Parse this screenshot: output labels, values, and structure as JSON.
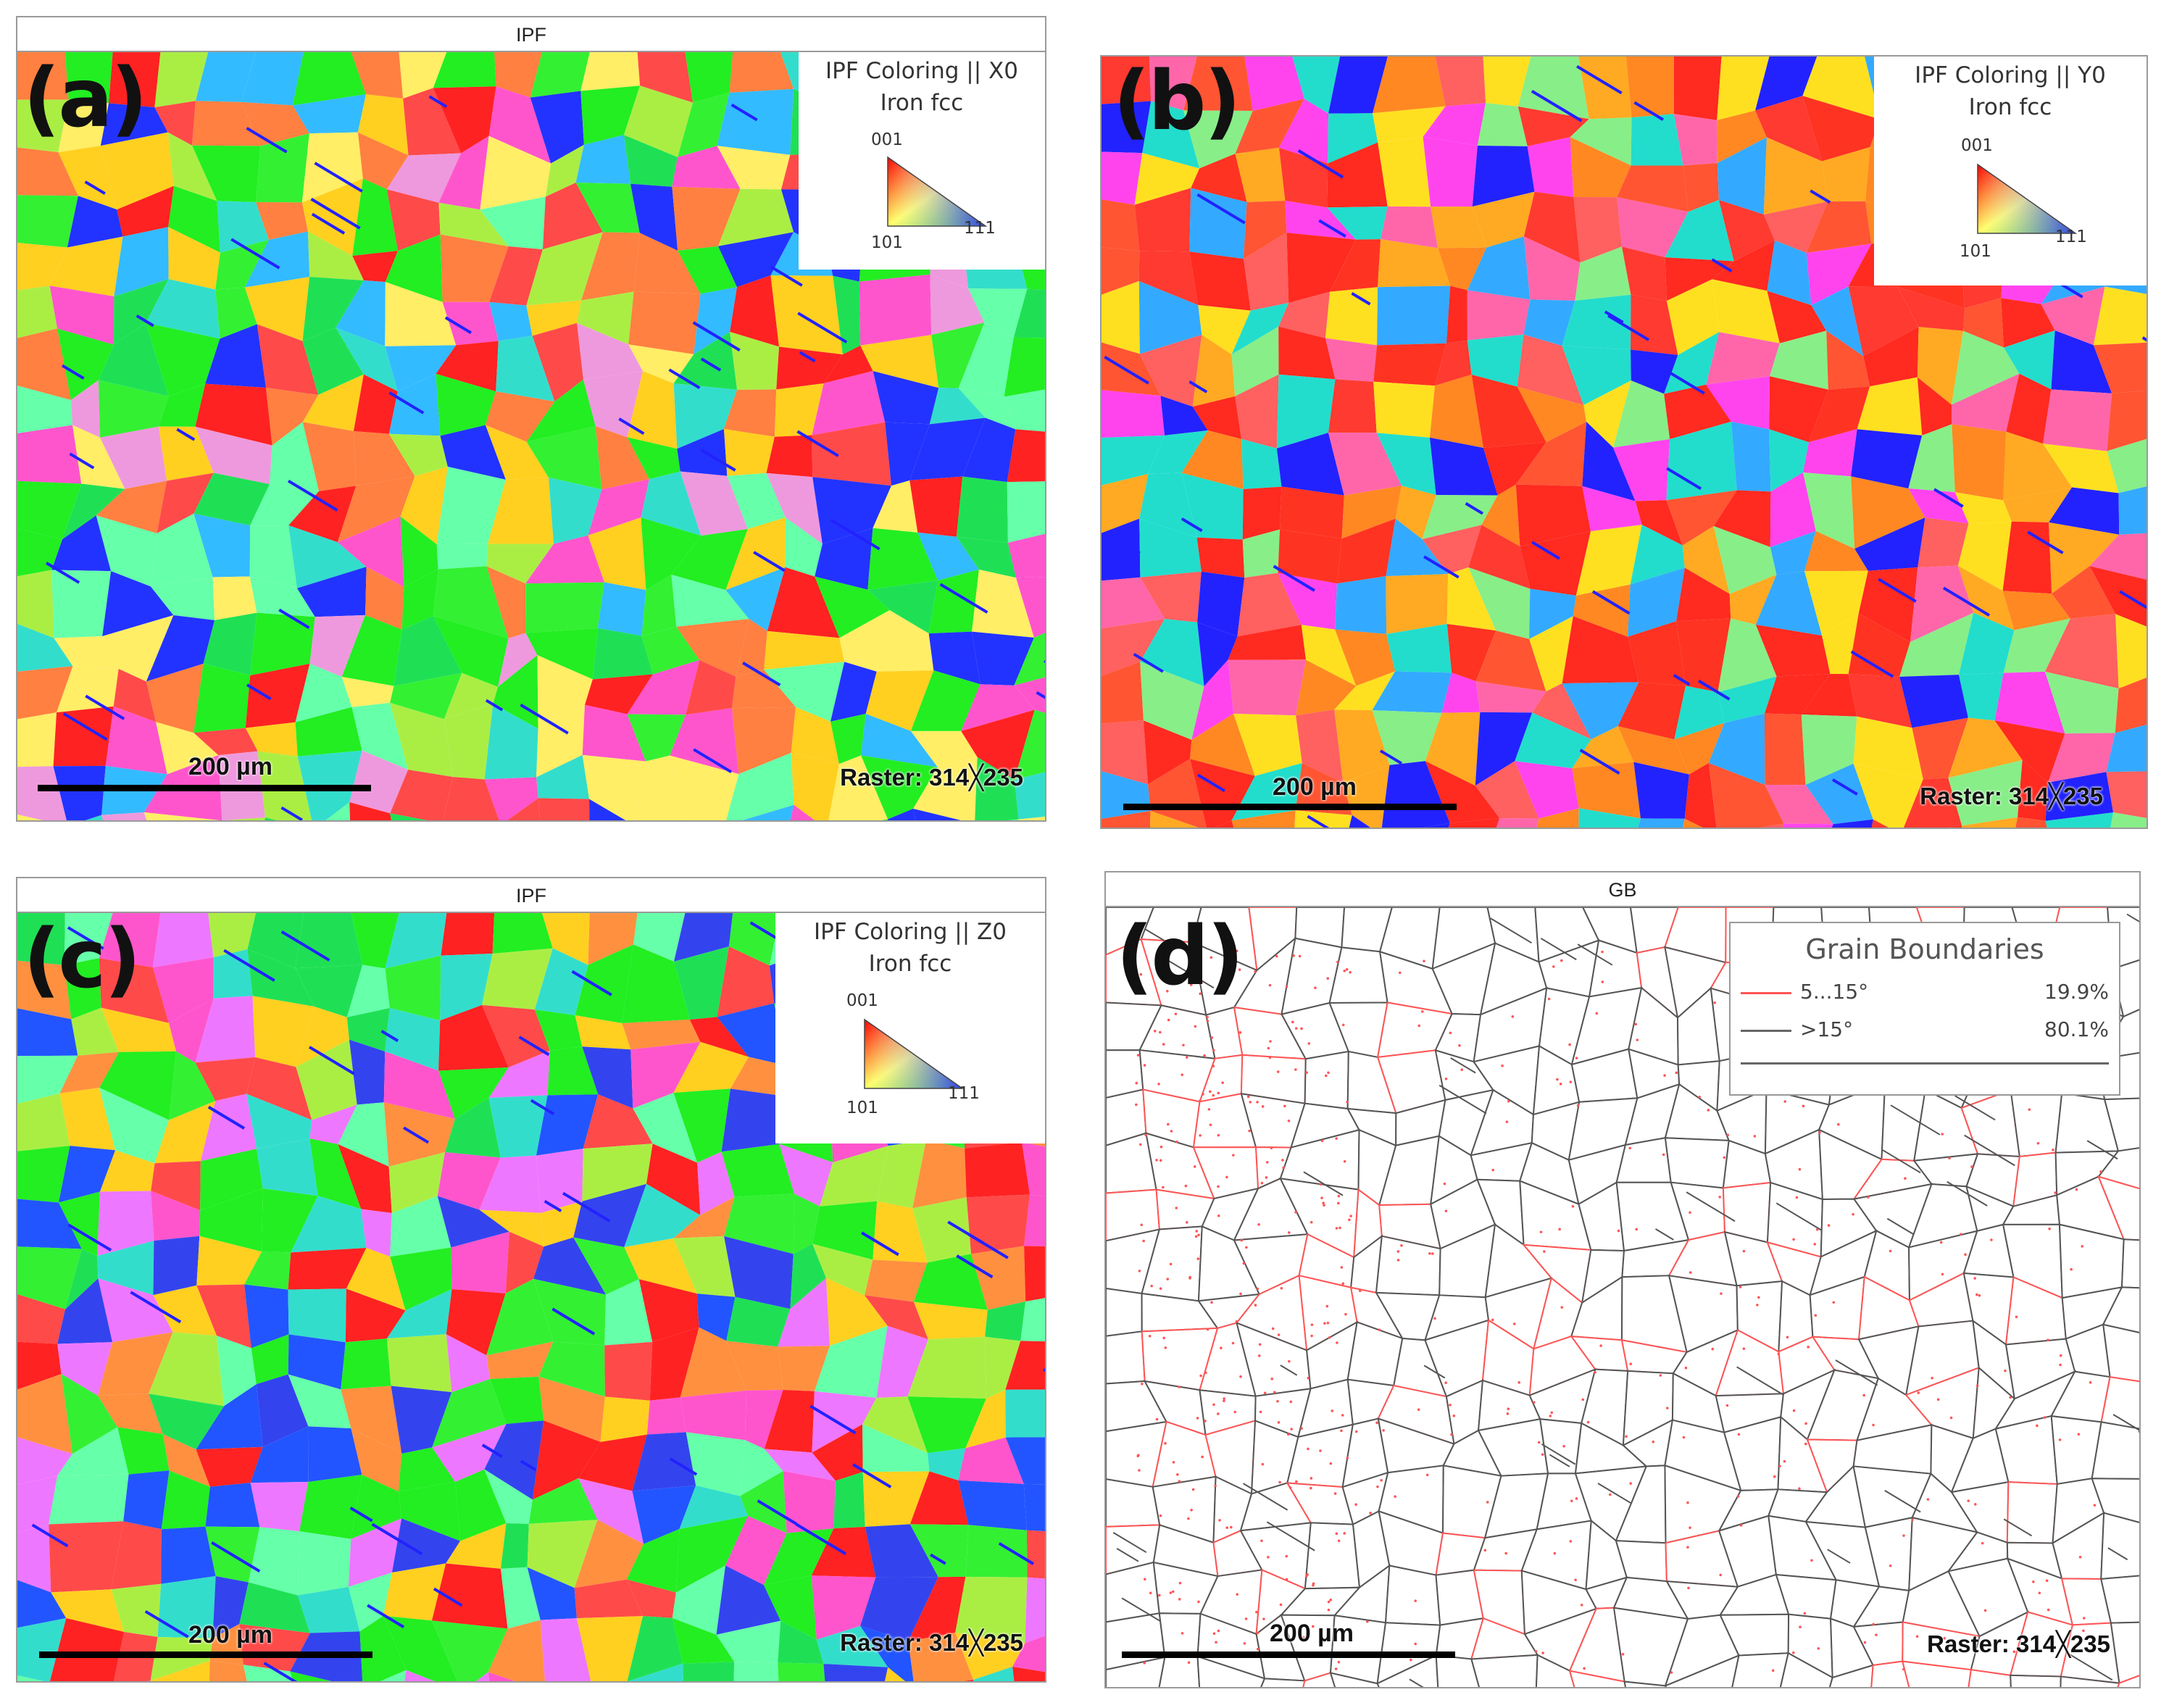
{
  "panels": [
    {
      "id": "a",
      "label": "(a)",
      "header": "IPF",
      "legend_title": "IPF Coloring || X0",
      "legend_phase": "Iron fcc",
      "dominant": "#22ee22"
    },
    {
      "id": "b",
      "label": "(b)",
      "header": "",
      "legend_title": "IPF Coloring || Y0",
      "legend_phase": "Iron fcc",
      "dominant": "#ff2a20"
    },
    {
      "id": "c",
      "label": "(c)",
      "header": "IPF",
      "legend_title": "IPF Coloring || Z0",
      "legend_phase": "Iron fcc",
      "dominant": "#22ee22"
    },
    {
      "id": "d",
      "label": "(d)",
      "header": "GB"
    }
  ],
  "triangle": {
    "top": "001",
    "left": "101",
    "right": "111"
  },
  "scale_label": "200 µm",
  "raster_label": "Raster: 314╳235",
  "grain_boundaries": {
    "title": "Grain Boundaries",
    "rows": [
      {
        "label": "5...15°",
        "value": "19.9%",
        "color": "#ff5555"
      },
      {
        "label": ">15°",
        "value": "80.1%",
        "color": "#666666"
      }
    ]
  }
}
